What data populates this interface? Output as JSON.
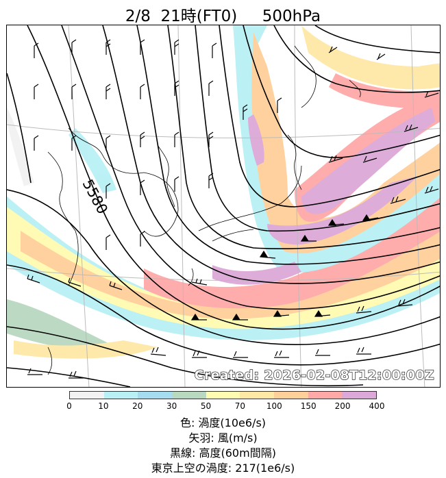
{
  "title": "2/8  21時(FT0)     500hPa",
  "created": "Created: 2026-02-08T12:00:00Z",
  "contour_label": "5580",
  "colorbar": {
    "ticks": [
      "0",
      "10",
      "20",
      "30",
      "50",
      "70",
      "100",
      "150",
      "200",
      "400"
    ],
    "colors": [
      "#f2f2f2",
      "#b8f0f5",
      "#a6dcf0",
      "#b9d8c0",
      "#fffbb0",
      "#ffe8a6",
      "#ffcf9a",
      "#ffa8a8",
      "#dca8d8"
    ]
  },
  "legend": {
    "color": "色: 渦度(10e6/s)",
    "barbs": "矢羽: 風(m/s)",
    "lines": "黒線: 高度(60m間隔)",
    "tokyo": "東京上空の渦度: 217(1e6/s)"
  }
}
